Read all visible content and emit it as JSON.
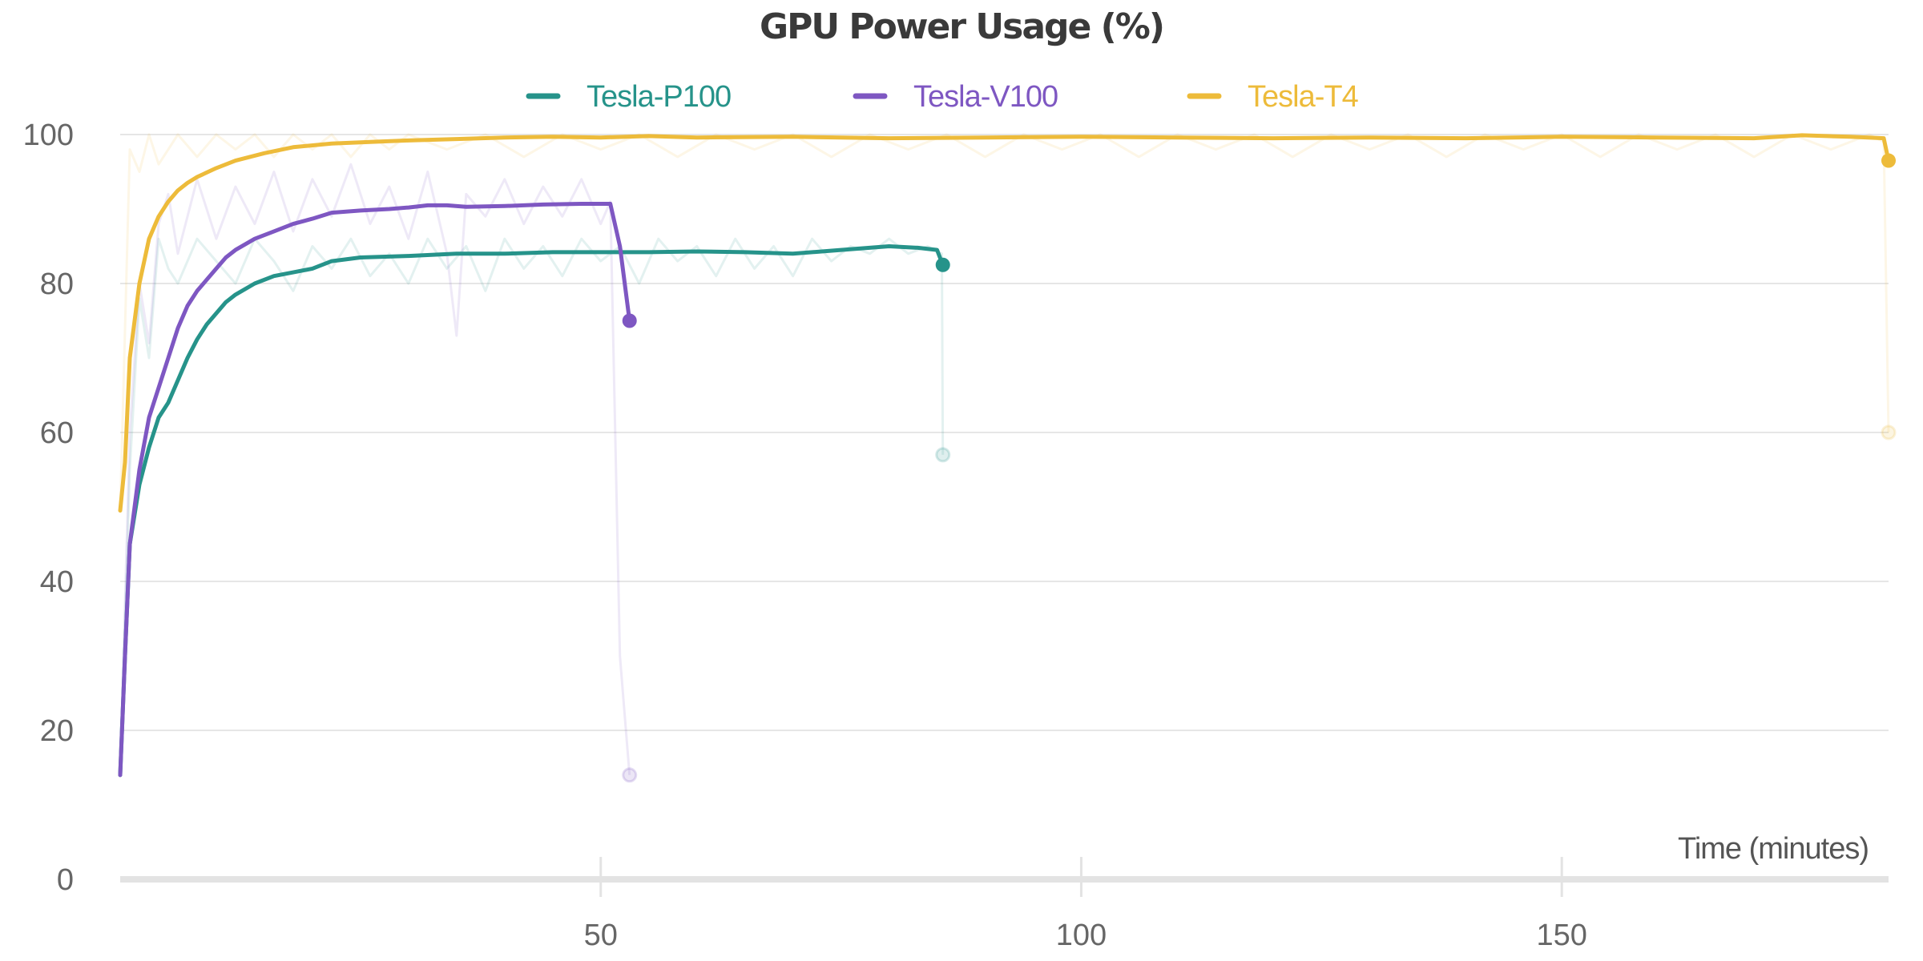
{
  "chart_data": {
    "type": "line",
    "title": "GPU Power Usage (%)",
    "xlabel": "Time (minutes)",
    "ylabel": "",
    "xlim": [
      0,
      184
    ],
    "ylim": [
      0,
      100
    ],
    "x_ticks": [
      50,
      100,
      150
    ],
    "y_ticks": [
      0,
      20,
      40,
      60,
      80,
      100
    ],
    "grid": "horizontal",
    "legend_position": "top",
    "series": [
      {
        "name": "Tesla-P100",
        "color": "#26938a",
        "smoothed": [
          [
            0,
            14
          ],
          [
            0.5,
            30
          ],
          [
            1,
            45
          ],
          [
            2,
            53
          ],
          [
            3,
            58
          ],
          [
            4,
            62
          ],
          [
            5,
            64
          ],
          [
            6,
            67
          ],
          [
            7,
            70
          ],
          [
            8,
            72.5
          ],
          [
            9,
            74.5
          ],
          [
            10,
            76
          ],
          [
            11,
            77.5
          ],
          [
            12,
            78.5
          ],
          [
            14,
            80
          ],
          [
            16,
            81
          ],
          [
            18,
            81.5
          ],
          [
            20,
            82
          ],
          [
            22,
            83
          ],
          [
            25,
            83.5
          ],
          [
            30,
            83.7
          ],
          [
            35,
            84
          ],
          [
            40,
            84
          ],
          [
            45,
            84.2
          ],
          [
            50,
            84.2
          ],
          [
            55,
            84.2
          ],
          [
            60,
            84.3
          ],
          [
            65,
            84.2
          ],
          [
            70,
            84
          ],
          [
            75,
            84.5
          ],
          [
            80,
            85
          ],
          [
            83,
            84.8
          ],
          [
            85,
            84.5
          ],
          [
            85.6,
            82.5
          ]
        ],
        "raw": [
          [
            0,
            14
          ],
          [
            1,
            55
          ],
          [
            2,
            78
          ],
          [
            3,
            70
          ],
          [
            4,
            86
          ],
          [
            5,
            82
          ],
          [
            6,
            80
          ],
          [
            8,
            86
          ],
          [
            10,
            83
          ],
          [
            12,
            80
          ],
          [
            14,
            86
          ],
          [
            16,
            83
          ],
          [
            18,
            79
          ],
          [
            20,
            85
          ],
          [
            22,
            82
          ],
          [
            24,
            86
          ],
          [
            26,
            81
          ],
          [
            28,
            84
          ],
          [
            30,
            80
          ],
          [
            32,
            86
          ],
          [
            34,
            82
          ],
          [
            36,
            85
          ],
          [
            38,
            79
          ],
          [
            40,
            86
          ],
          [
            42,
            82
          ],
          [
            44,
            85
          ],
          [
            46,
            81
          ],
          [
            48,
            86
          ],
          [
            50,
            83
          ],
          [
            52,
            85
          ],
          [
            54,
            80
          ],
          [
            56,
            86
          ],
          [
            58,
            83
          ],
          [
            60,
            85
          ],
          [
            62,
            81
          ],
          [
            64,
            86
          ],
          [
            66,
            82
          ],
          [
            68,
            85
          ],
          [
            70,
            81
          ],
          [
            72,
            86
          ],
          [
            74,
            83
          ],
          [
            76,
            85
          ],
          [
            78,
            84
          ],
          [
            80,
            86
          ],
          [
            82,
            84
          ],
          [
            84,
            85
          ],
          [
            85.5,
            84
          ],
          [
            85.6,
            57
          ]
        ]
      },
      {
        "name": "Tesla-V100",
        "color": "#7e57c2",
        "smoothed": [
          [
            0,
            14
          ],
          [
            0.5,
            30
          ],
          [
            1,
            45
          ],
          [
            2,
            55
          ],
          [
            3,
            62
          ],
          [
            4,
            66
          ],
          [
            5,
            70
          ],
          [
            6,
            74
          ],
          [
            7,
            77
          ],
          [
            8,
            79
          ],
          [
            9,
            80.5
          ],
          [
            10,
            82
          ],
          [
            11,
            83.5
          ],
          [
            12,
            84.5
          ],
          [
            14,
            86
          ],
          [
            16,
            87
          ],
          [
            18,
            88
          ],
          [
            20,
            88.7
          ],
          [
            22,
            89.5
          ],
          [
            25,
            89.8
          ],
          [
            28,
            90
          ],
          [
            30,
            90.2
          ],
          [
            32,
            90.5
          ],
          [
            34,
            90.5
          ],
          [
            36,
            90.3
          ],
          [
            40,
            90.4
          ],
          [
            44,
            90.6
          ],
          [
            48,
            90.7
          ],
          [
            51,
            90.7
          ],
          [
            52,
            85
          ],
          [
            52.5,
            80
          ],
          [
            53,
            75
          ]
        ],
        "raw": [
          [
            0,
            14
          ],
          [
            1,
            60
          ],
          [
            2,
            80
          ],
          [
            3,
            72
          ],
          [
            4,
            88
          ],
          [
            5,
            92
          ],
          [
            6,
            84
          ],
          [
            8,
            94
          ],
          [
            10,
            86
          ],
          [
            12,
            93
          ],
          [
            14,
            88
          ],
          [
            16,
            95
          ],
          [
            18,
            87
          ],
          [
            20,
            94
          ],
          [
            22,
            89
          ],
          [
            24,
            96
          ],
          [
            26,
            88
          ],
          [
            28,
            93
          ],
          [
            30,
            86
          ],
          [
            32,
            95
          ],
          [
            34,
            84
          ],
          [
            35,
            73
          ],
          [
            36,
            92
          ],
          [
            38,
            89
          ],
          [
            40,
            94
          ],
          [
            42,
            88
          ],
          [
            44,
            93
          ],
          [
            46,
            89
          ],
          [
            48,
            94
          ],
          [
            50,
            88
          ],
          [
            51,
            91
          ],
          [
            52,
            30
          ],
          [
            53,
            14
          ]
        ]
      },
      {
        "name": "Tesla-T4",
        "color": "#edbb3a",
        "smoothed": [
          [
            0,
            49.5
          ],
          [
            0.5,
            56
          ],
          [
            1,
            70
          ],
          [
            2,
            80
          ],
          [
            3,
            86
          ],
          [
            4,
            89
          ],
          [
            5,
            91
          ],
          [
            6,
            92.5
          ],
          [
            7,
            93.5
          ],
          [
            8,
            94.3
          ],
          [
            10,
            95.5
          ],
          [
            12,
            96.5
          ],
          [
            15,
            97.5
          ],
          [
            18,
            98.3
          ],
          [
            22,
            98.8
          ],
          [
            26,
            99
          ],
          [
            30,
            99.2
          ],
          [
            35,
            99.4
          ],
          [
            40,
            99.6
          ],
          [
            45,
            99.7
          ],
          [
            50,
            99.6
          ],
          [
            55,
            99.8
          ],
          [
            60,
            99.6
          ],
          [
            70,
            99.7
          ],
          [
            80,
            99.5
          ],
          [
            90,
            99.6
          ],
          [
            100,
            99.7
          ],
          [
            110,
            99.6
          ],
          [
            120,
            99.5
          ],
          [
            130,
            99.6
          ],
          [
            140,
            99.5
          ],
          [
            150,
            99.7
          ],
          [
            160,
            99.6
          ],
          [
            170,
            99.5
          ],
          [
            175,
            99.9
          ],
          [
            180,
            99.7
          ],
          [
            183.5,
            99.5
          ],
          [
            184,
            96.5
          ]
        ],
        "raw": [
          [
            0,
            49.5
          ],
          [
            1,
            98
          ],
          [
            2,
            95
          ],
          [
            3,
            100
          ],
          [
            4,
            96
          ],
          [
            6,
            100
          ],
          [
            8,
            97
          ],
          [
            10,
            100
          ],
          [
            12,
            98
          ],
          [
            14,
            100
          ],
          [
            16,
            97
          ],
          [
            18,
            100
          ],
          [
            20,
            98
          ],
          [
            22,
            100
          ],
          [
            24,
            97
          ],
          [
            26,
            100
          ],
          [
            28,
            98
          ],
          [
            30,
            100
          ],
          [
            34,
            98
          ],
          [
            38,
            100
          ],
          [
            42,
            97
          ],
          [
            46,
            100
          ],
          [
            50,
            98
          ],
          [
            54,
            100
          ],
          [
            58,
            97
          ],
          [
            62,
            100
          ],
          [
            66,
            98
          ],
          [
            70,
            100
          ],
          [
            74,
            97
          ],
          [
            78,
            100
          ],
          [
            82,
            98
          ],
          [
            86,
            100
          ],
          [
            90,
            97
          ],
          [
            94,
            100
          ],
          [
            98,
            98
          ],
          [
            102,
            100
          ],
          [
            106,
            97
          ],
          [
            110,
            100
          ],
          [
            114,
            98
          ],
          [
            118,
            100
          ],
          [
            122,
            97
          ],
          [
            126,
            100
          ],
          [
            130,
            98
          ],
          [
            134,
            100
          ],
          [
            138,
            97
          ],
          [
            142,
            100
          ],
          [
            146,
            98
          ],
          [
            150,
            100
          ],
          [
            154,
            97
          ],
          [
            158,
            100
          ],
          [
            162,
            98
          ],
          [
            166,
            100
          ],
          [
            170,
            97
          ],
          [
            174,
            100
          ],
          [
            178,
            98
          ],
          [
            182,
            100
          ],
          [
            183.5,
            99
          ],
          [
            184,
            60
          ]
        ]
      }
    ]
  }
}
